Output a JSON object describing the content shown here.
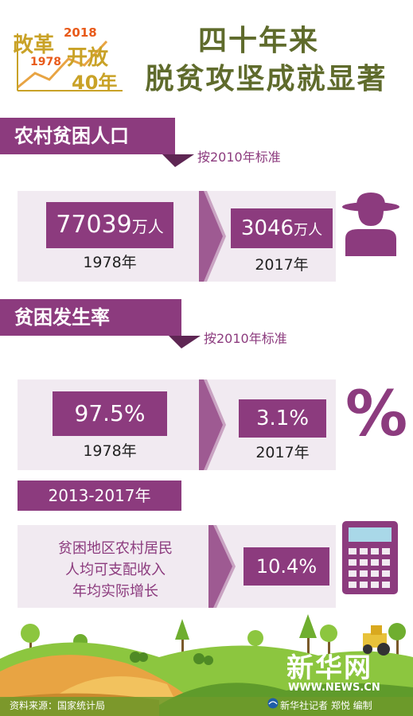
{
  "logo": {
    "line1": "改革",
    "year_end": "2018",
    "year_start": "1978",
    "line2": "开放",
    "anniversary": "40年"
  },
  "title": {
    "line1": "四十年来",
    "line2": "脱贫攻坚成就显著"
  },
  "section1": {
    "banner": "农村贫困人口",
    "note": "按2010年标准",
    "from_value_num": "77039",
    "from_value_unit": "万人",
    "from_year": "1978年",
    "to_value_num": "3046",
    "to_value_unit": "万人",
    "to_year": "2017年",
    "icon": "farmer-icon"
  },
  "section2": {
    "banner": "贫困发生率",
    "note": "按2010年标准",
    "from_value": "97.5%",
    "from_year": "1978年",
    "to_value": "3.1%",
    "to_year": "2017年",
    "symbol": "%"
  },
  "section3": {
    "period": "2013-2017年",
    "desc_line1": "贫困地区农村居民",
    "desc_line2": "人均可支配收入",
    "desc_line3": "年均实际增长",
    "value": "10.4%",
    "icon": "calculator-icon"
  },
  "footer": {
    "source": "资料来源：国家统计局",
    "brand_cn": "新华网",
    "brand_url": "WWW.NEWS.CN",
    "credit": "新华社记者 郑悦 编制"
  },
  "colors": {
    "accent": "#8c3b7e",
    "title_green": "#5f6b2c",
    "panel_bg": "#f1eaf1",
    "field_orange": "#e8a443",
    "grass_green": "#8cc63f"
  }
}
